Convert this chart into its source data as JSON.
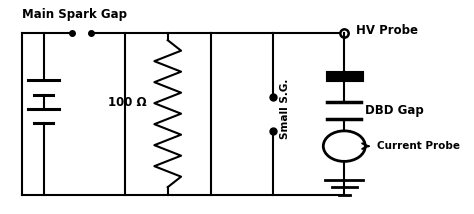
{
  "bg_color": "#ffffff",
  "line_color": "#000000",
  "line_width": 1.5,
  "fig_width": 4.74,
  "fig_height": 2.14,
  "dpi": 100,
  "labels": {
    "main_spark_gap": "Main Spark Gap",
    "resistor": "100 Ω",
    "small_sg": "Small S.G.",
    "hv_probe": "HV Probe",
    "dbd_gap": "DBD Gap",
    "current_probe": "Current Probe"
  }
}
